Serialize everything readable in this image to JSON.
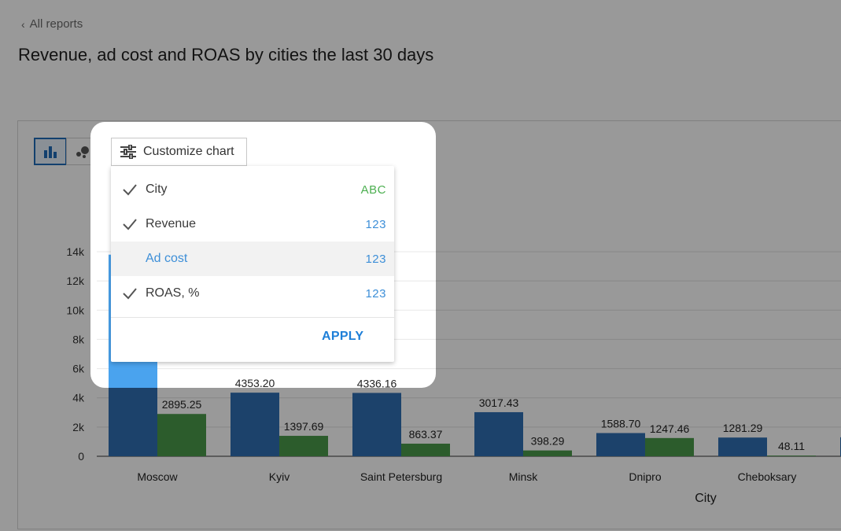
{
  "nav": {
    "back_label": "All reports"
  },
  "page": {
    "title": "Revenue, ad cost and ROAS by cities the last 30 days"
  },
  "toolbar": {
    "customize_label": "Customize chart",
    "bar_view_icon": "bar-chart-icon",
    "bubble_view_icon": "bubble-chart-icon"
  },
  "dropdown": {
    "items": [
      {
        "label": "City",
        "type": "ABC",
        "checked": true,
        "type_color": "#4caf50"
      },
      {
        "label": "Revenue",
        "type": "123",
        "checked": true,
        "type_color": "#3d8fd8"
      },
      {
        "label": "Ad cost",
        "type": "123",
        "checked": false,
        "type_color": "#3d8fd8"
      },
      {
        "label": "ROAS, %",
        "type": "123",
        "checked": true,
        "type_color": "#3d8fd8"
      }
    ],
    "apply_label": "APPLY"
  },
  "chart_data": {
    "type": "bar",
    "xlabel": "City",
    "ylim": [
      0,
      14000
    ],
    "yticks": [
      {
        "value": 0,
        "label": "0"
      },
      {
        "value": 2000,
        "label": "2k"
      },
      {
        "value": 4000,
        "label": "4k"
      },
      {
        "value": 6000,
        "label": "6k"
      },
      {
        "value": 8000,
        "label": "8k"
      },
      {
        "value": 10000,
        "label": "10k"
      },
      {
        "value": 12000,
        "label": "12k"
      },
      {
        "value": 14000,
        "label": "14k"
      }
    ],
    "categories": [
      "Moscow",
      "Kyiv",
      "Saint Petersburg",
      "Minsk",
      "Dnipro",
      "Cheboksary"
    ],
    "series": [
      {
        "color": "#2f6fb3",
        "values": [
          13800,
          4353.2,
          4336.16,
          3017.43,
          1588.7,
          1281.29
        ],
        "labels": [
          "",
          "4353.20",
          "4336.16",
          "3017.43",
          "1588.70",
          "1281.29"
        ]
      },
      {
        "color": "#4a9a4a",
        "values": [
          2895.25,
          1397.69,
          863.37,
          398.29,
          1247.46,
          48.11
        ],
        "labels": [
          "2895.25",
          "1397.69",
          "863.37",
          "398.29",
          "1247.46",
          "48.11"
        ]
      }
    ],
    "grid": true
  }
}
